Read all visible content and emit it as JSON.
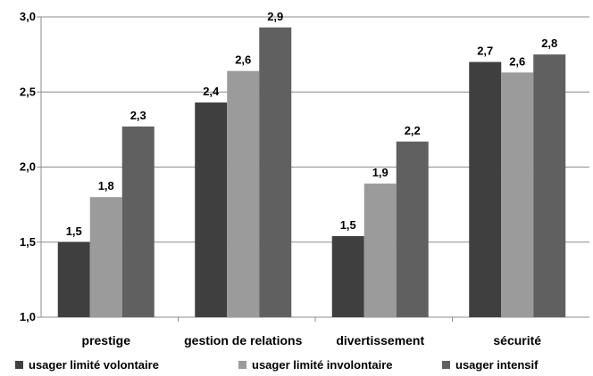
{
  "chart_data": {
    "type": "bar",
    "title": "",
    "xlabel": "",
    "ylabel": "",
    "categories": [
      "prestige",
      "gestion de relations",
      "divertissement",
      "sécurité"
    ],
    "series": [
      {
        "name": "usager limité volontaire",
        "color": "#3f3f3f",
        "values": [
          1.5,
          2.43,
          1.54,
          2.7
        ],
        "labels": [
          "1,5",
          "2,4",
          "1,5",
          "2,7"
        ]
      },
      {
        "name": "usager limité involontaire",
        "color": "#9b9b9b",
        "values": [
          1.8,
          2.64,
          1.89,
          2.63
        ],
        "labels": [
          "1,8",
          "2,6",
          "1,9",
          "2,6"
        ]
      },
      {
        "name": "usager intensif",
        "color": "#606060",
        "values": [
          2.27,
          2.93,
          2.17,
          2.75
        ],
        "labels": [
          "2,3",
          "2,9",
          "2,2",
          "2,8"
        ]
      }
    ],
    "ylim": [
      1.0,
      3.0
    ],
    "yticks": [
      1.0,
      1.5,
      2.0,
      2.5,
      3.0
    ],
    "ytick_labels": [
      "1,0",
      "1,5",
      "2,0",
      "2,5",
      "3,0"
    ],
    "grid": true,
    "legend_position": "bottom"
  }
}
